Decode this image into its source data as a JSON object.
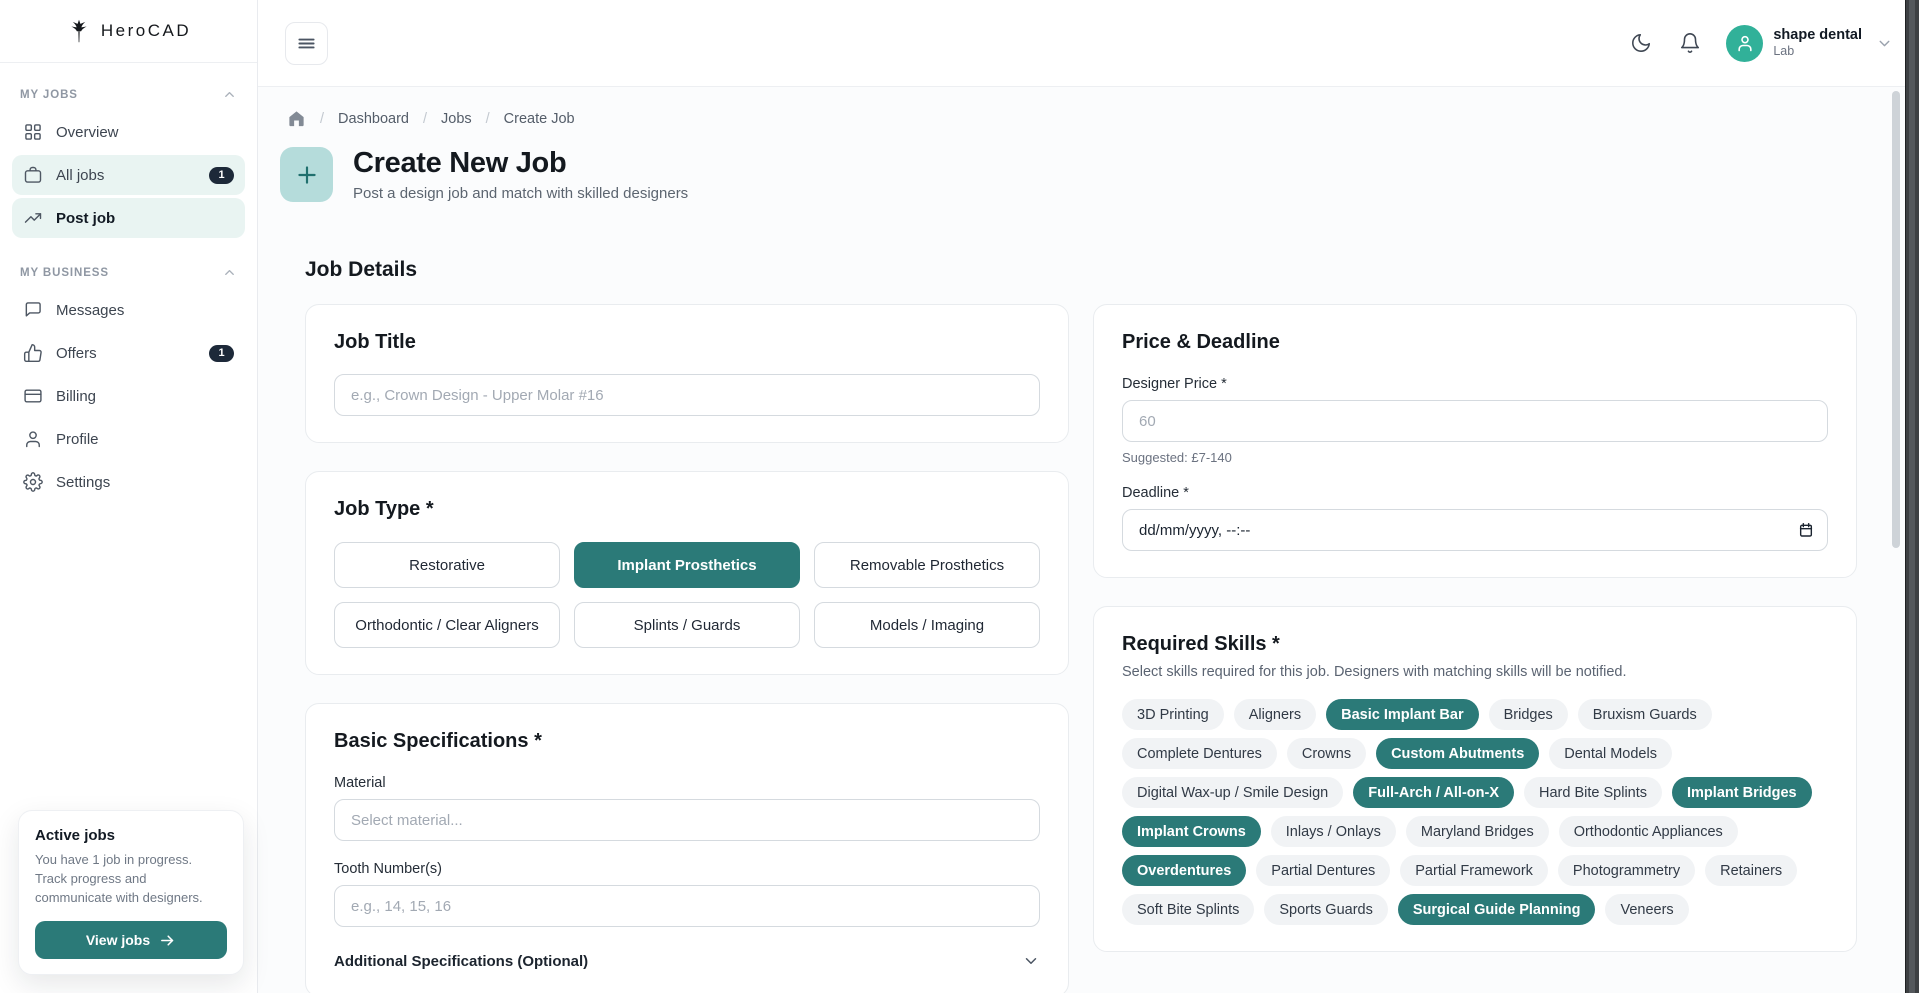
{
  "brand": {
    "logo_text": "HeroCAD"
  },
  "sidebar": {
    "sections": [
      {
        "label": "MY JOBS",
        "items": [
          {
            "label": "Overview",
            "icon": "grid-icon"
          },
          {
            "label": "All jobs",
            "icon": "briefcase-icon",
            "badge": "1",
            "highlighted": true
          },
          {
            "label": "Post job",
            "icon": "trending-up-icon",
            "highlighted": true,
            "active": true
          }
        ]
      },
      {
        "label": "MY BUSINESS",
        "items": [
          {
            "label": "Messages",
            "icon": "chat-icon"
          },
          {
            "label": "Offers",
            "icon": "thumbs-up-icon",
            "badge": "1"
          },
          {
            "label": "Billing",
            "icon": "credit-card-icon"
          },
          {
            "label": "Profile",
            "icon": "user-icon"
          },
          {
            "label": "Settings",
            "icon": "gear-icon"
          }
        ]
      }
    ],
    "active_jobs_card": {
      "title": "Active jobs",
      "body": "You have 1 job in progress. Track progress and communicate with designers.",
      "button_label": "View jobs"
    }
  },
  "header": {
    "user_name": "shape dental",
    "user_role": "Lab"
  },
  "breadcrumb": {
    "items": [
      "Dashboard",
      "Jobs",
      "Create Job"
    ]
  },
  "page": {
    "title": "Create New Job",
    "subtitle": "Post a design job and match with skilled designers",
    "section_heading": "Job Details"
  },
  "job_title_card": {
    "heading": "Job Title",
    "placeholder": "e.g., Crown Design - Upper Molar #16"
  },
  "job_type_card": {
    "heading": "Job Type *",
    "options": [
      {
        "label": "Restorative",
        "selected": false
      },
      {
        "label": "Implant Prosthetics",
        "selected": true
      },
      {
        "label": "Removable Prosthetics",
        "selected": false
      },
      {
        "label": "Orthodontic / Clear Aligners",
        "selected": false
      },
      {
        "label": "Splints / Guards",
        "selected": false
      },
      {
        "label": "Models / Imaging",
        "selected": false
      }
    ]
  },
  "basic_specs_card": {
    "heading": "Basic Specifications *",
    "material_label": "Material",
    "material_placeholder": "Select material...",
    "tooth_label": "Tooth Number(s)",
    "tooth_placeholder": "e.g., 14, 15, 16",
    "additional_label": "Additional Specifications (Optional)"
  },
  "price_deadline_card": {
    "heading": "Price & Deadline",
    "price_label": "Designer Price *",
    "price_placeholder": "60",
    "suggested_text": "Suggested: £7-140",
    "deadline_label": "Deadline *",
    "deadline_value": "dd/mm/yyyy, --:--"
  },
  "skills_card": {
    "heading": "Required Skills *",
    "subtitle": "Select skills required for this job. Designers with matching skills will be notified.",
    "skills": [
      {
        "label": "3D Printing",
        "selected": false
      },
      {
        "label": "Aligners",
        "selected": false
      },
      {
        "label": "Basic Implant Bar",
        "selected": true
      },
      {
        "label": "Bridges",
        "selected": false
      },
      {
        "label": "Bruxism Guards",
        "selected": false
      },
      {
        "label": "Complete Dentures",
        "selected": false
      },
      {
        "label": "Crowns",
        "selected": false
      },
      {
        "label": "Custom Abutments",
        "selected": true
      },
      {
        "label": "Dental Models",
        "selected": false
      },
      {
        "label": "Digital Wax-up / Smile Design",
        "selected": false
      },
      {
        "label": "Full-Arch / All-on-X",
        "selected": true
      },
      {
        "label": "Hard Bite Splints",
        "selected": false
      },
      {
        "label": "Implant Bridges",
        "selected": true
      },
      {
        "label": "Implant Crowns",
        "selected": true
      },
      {
        "label": "Inlays / Onlays",
        "selected": false
      },
      {
        "label": "Maryland Bridges",
        "selected": false
      },
      {
        "label": "Orthodontic Appliances",
        "selected": false
      },
      {
        "label": "Overdentures",
        "selected": true
      },
      {
        "label": "Partial Dentures",
        "selected": false
      },
      {
        "label": "Partial Framework",
        "selected": false
      },
      {
        "label": "Photogrammetry",
        "selected": false
      },
      {
        "label": "Retainers",
        "selected": false
      },
      {
        "label": "Soft Bite Splints",
        "selected": false
      },
      {
        "label": "Sports Guards",
        "selected": false
      },
      {
        "label": "Surgical Guide Planning",
        "selected": true
      },
      {
        "label": "Veneers",
        "selected": false
      }
    ]
  },
  "colors": {
    "accent": "#2b7a78",
    "accent_light": "#b5dcdb",
    "sidebar_active_bg": "#e9f4f2",
    "badge_bg": "#1d2939",
    "avatar_bg": "#31b199"
  }
}
